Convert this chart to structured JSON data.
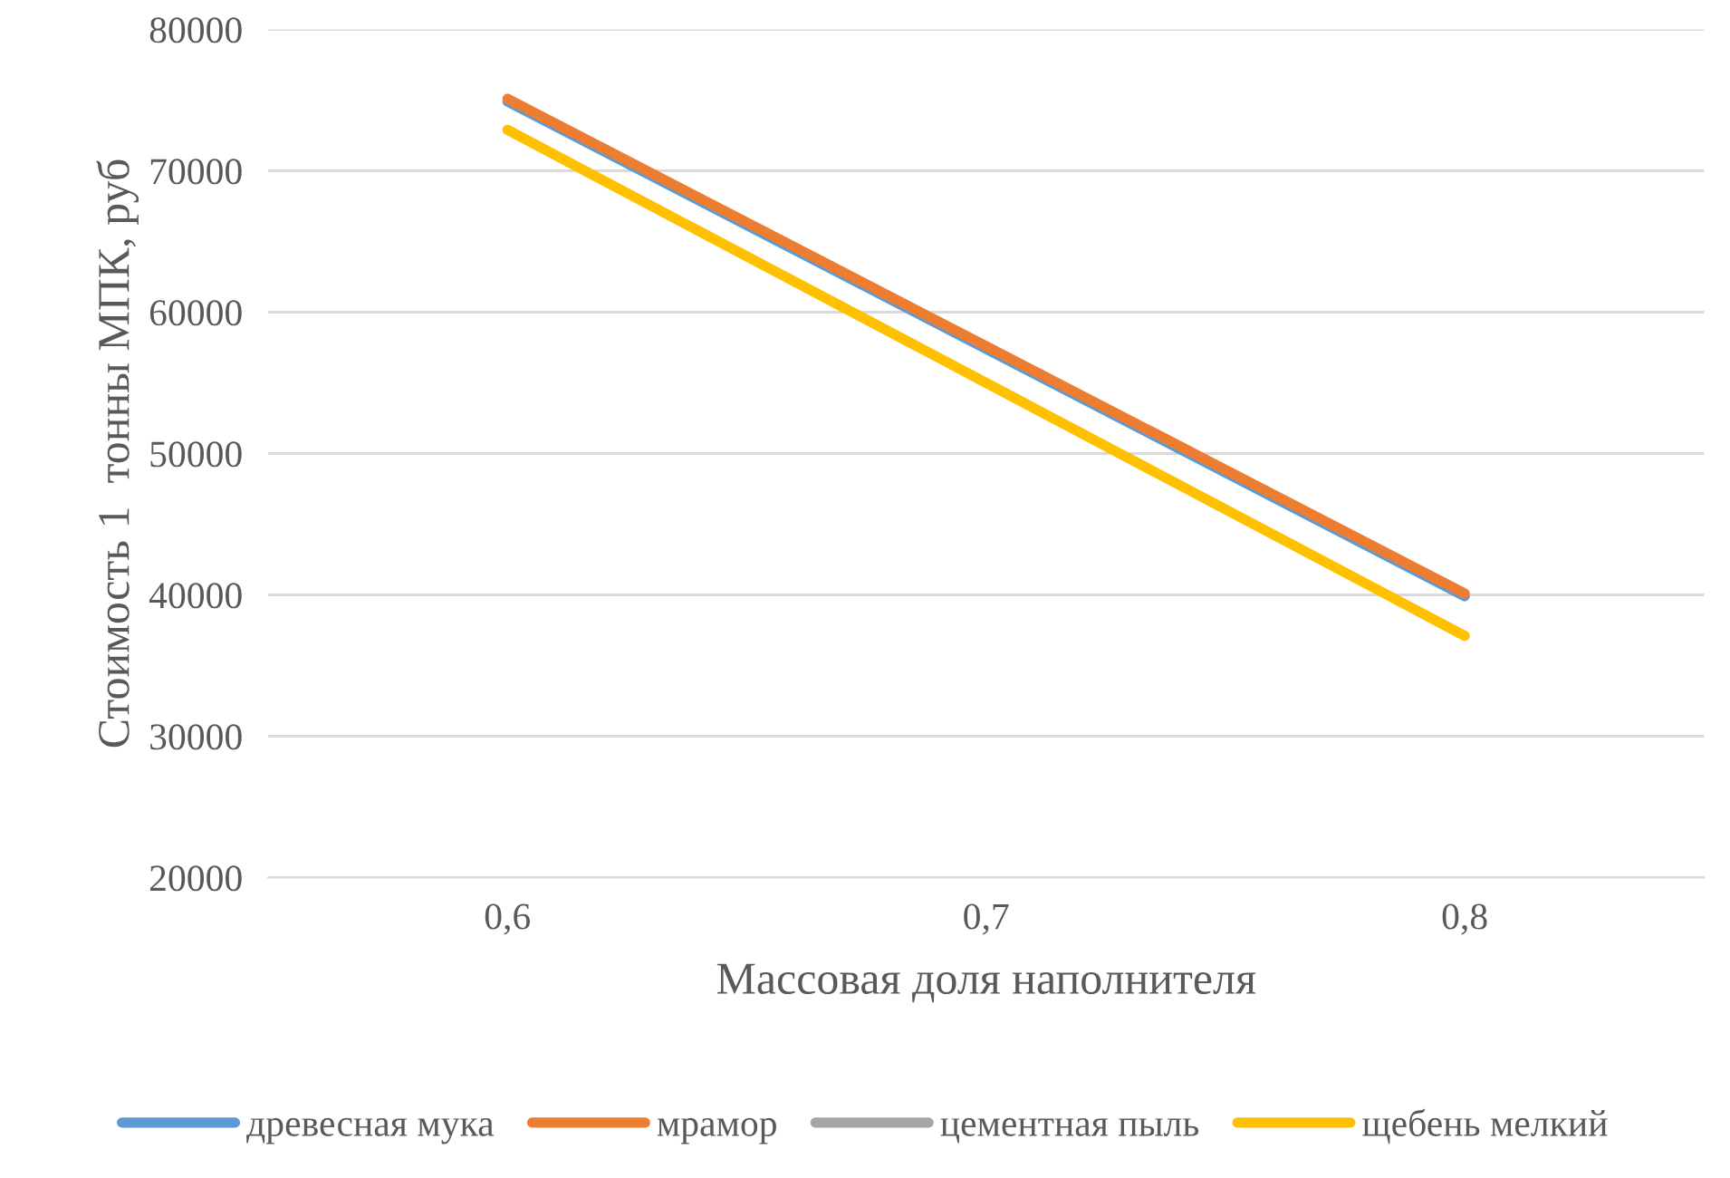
{
  "chart_data": {
    "type": "line",
    "xlabel": "Массовая доля наполнителя",
    "ylabel": "Стоимость 1  тонны МПК, руб",
    "categories": [
      "0,6",
      "0,7",
      "0,8"
    ],
    "series": [
      {
        "name": "древесная мука",
        "color": "#5b9bd5",
        "values": [
          74900,
          57400,
          39900
        ]
      },
      {
        "name": "мрамор",
        "color": "#ed7d31",
        "values": [
          75100,
          57600,
          40100
        ]
      },
      {
        "name": "цементная пыль",
        "color": "#a5a5a5",
        "values": [
          null,
          null,
          null
        ]
      },
      {
        "name": "щебень мелкий",
        "color": "#ffc000",
        "values": [
          72900,
          55000,
          37100
        ]
      }
    ],
    "ylim": [
      20000,
      80000
    ],
    "yticks": [
      20000,
      30000,
      40000,
      50000,
      60000,
      70000,
      80000
    ],
    "grid": "y",
    "legend": "bottom",
    "marker": "none",
    "line_style": "solid"
  }
}
